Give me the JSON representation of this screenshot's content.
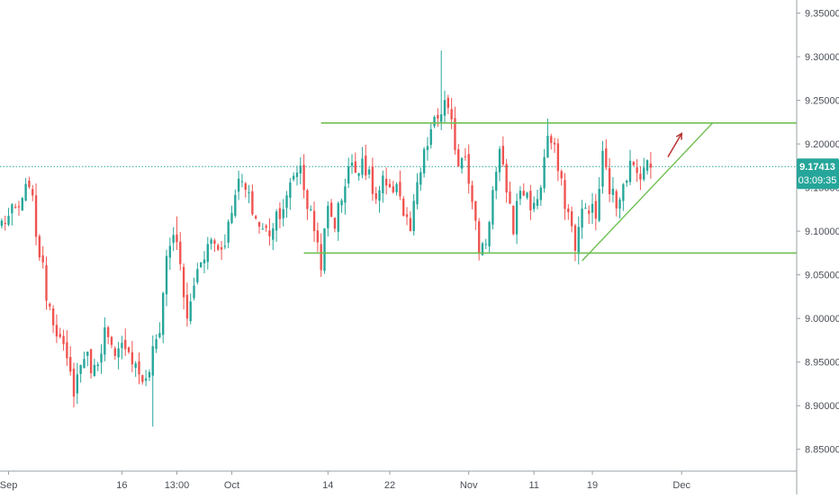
{
  "chart_data": {
    "type": "candlestick",
    "title": "",
    "xlabel": "",
    "ylabel": "",
    "ylim": [
      8.825,
      9.365
    ],
    "y_ticks": [
      "9.35000",
      "9.30000",
      "9.25000",
      "9.20000",
      "9.15000",
      "9.10000",
      "9.05000",
      "9.00000",
      "8.95000",
      "8.90000",
      "8.85000"
    ],
    "x_ticks": [
      {
        "label": "Sep",
        "bar": 2
      },
      {
        "label": "16",
        "bar": 35
      },
      {
        "label": "13:00",
        "bar": 51
      },
      {
        "label": "Oct",
        "bar": 67
      },
      {
        "label": "14",
        "bar": 95
      },
      {
        "label": "22",
        "bar": 113
      },
      {
        "label": "Nov",
        "bar": 136
      },
      {
        "label": "11",
        "bar": 155
      },
      {
        "label": "19",
        "bar": 172
      },
      {
        "label": "Dec",
        "bar": 198
      }
    ],
    "bar_count": 232,
    "current_price": "9.17413",
    "countdown": "03:09:35",
    "current_price_value": 9.17413,
    "colors": {
      "up": "#26a69a",
      "down": "#ef5350",
      "trendline": "#6fbf52",
      "arrow": "#b83232",
      "price_tag": "#26a69a"
    },
    "grid": false,
    "anchor_points": [
      [
        0,
        9.11
      ],
      [
        6,
        9.13
      ],
      [
        8,
        9.16
      ],
      [
        10,
        9.1
      ],
      [
        13,
        9.03
      ],
      [
        17,
        8.975
      ],
      [
        21,
        8.92
      ],
      [
        24,
        8.96
      ],
      [
        27,
        8.94
      ],
      [
        30,
        8.985
      ],
      [
        33,
        8.95
      ],
      [
        36,
        8.975
      ],
      [
        39,
        8.945
      ],
      [
        42,
        8.925
      ],
      [
        44,
        8.96
      ],
      [
        46,
        8.99
      ],
      [
        48,
        9.07
      ],
      [
        50,
        9.1
      ],
      [
        52,
        9.06
      ],
      [
        54,
        8.995
      ],
      [
        56,
        9.04
      ],
      [
        58,
        9.07
      ],
      [
        61,
        9.09
      ],
      [
        64,
        9.08
      ],
      [
        66,
        9.105
      ],
      [
        68,
        9.15
      ],
      [
        70,
        9.155
      ],
      [
        72,
        9.135
      ],
      [
        74,
        9.115
      ],
      [
        76,
        9.1
      ],
      [
        78,
        9.1
      ],
      [
        80,
        9.12
      ],
      [
        83,
        9.135
      ],
      [
        85,
        9.165
      ],
      [
        87,
        9.175
      ],
      [
        89,
        9.13
      ],
      [
        91,
        9.105
      ],
      [
        93,
        9.065
      ],
      [
        95,
        9.125
      ],
      [
        97,
        9.11
      ],
      [
        99,
        9.14
      ],
      [
        101,
        9.175
      ],
      [
        103,
        9.17
      ],
      [
        105,
        9.185
      ],
      [
        107,
        9.16
      ],
      [
        109,
        9.135
      ],
      [
        111,
        9.155
      ],
      [
        113,
        9.14
      ],
      [
        115,
        9.16
      ],
      [
        117,
        9.12
      ],
      [
        119,
        9.1
      ],
      [
        121,
        9.15
      ],
      [
        123,
        9.185
      ],
      [
        125,
        9.215
      ],
      [
        127,
        9.23
      ],
      [
        129,
        9.245
      ],
      [
        131,
        9.22
      ],
      [
        133,
        9.18
      ],
      [
        135,
        9.195
      ],
      [
        137,
        9.13
      ],
      [
        139,
        9.08
      ],
      [
        141,
        9.09
      ],
      [
        143,
        9.145
      ],
      [
        145,
        9.185
      ],
      [
        147,
        9.15
      ],
      [
        149,
        9.105
      ],
      [
        151,
        9.15
      ],
      [
        153,
        9.14
      ],
      [
        155,
        9.125
      ],
      [
        157,
        9.155
      ],
      [
        159,
        9.21
      ],
      [
        161,
        9.19
      ],
      [
        163,
        9.15
      ],
      [
        165,
        9.12
      ],
      [
        167,
        9.085
      ],
      [
        169,
        9.12
      ],
      [
        171,
        9.13
      ],
      [
        173,
        9.115
      ],
      [
        175,
        9.185
      ],
      [
        177,
        9.15
      ],
      [
        179,
        9.13
      ],
      [
        181,
        9.16
      ],
      [
        183,
        9.175
      ],
      [
        185,
        9.165
      ],
      [
        187,
        9.175
      ],
      [
        189,
        9.174
      ]
    ],
    "annotations": [
      {
        "type": "horizontal_line",
        "label": "resistance",
        "y": 9.224,
        "bar_from": 93,
        "bar_to": 232
      },
      {
        "type": "horizontal_line",
        "label": "support",
        "y": 9.075,
        "bar_from": 88,
        "bar_to": 232
      },
      {
        "type": "trendline",
        "label": "ascending",
        "from": [
          169,
          9.066
        ],
        "to": [
          207,
          9.224
        ]
      },
      {
        "type": "horizontal_line",
        "label": "current-price",
        "y": 9.17413,
        "style": "dotted"
      },
      {
        "type": "arrow",
        "direction": "up",
        "from": [
          194,
          9.185
        ],
        "to": [
          198,
          9.212
        ]
      }
    ]
  }
}
